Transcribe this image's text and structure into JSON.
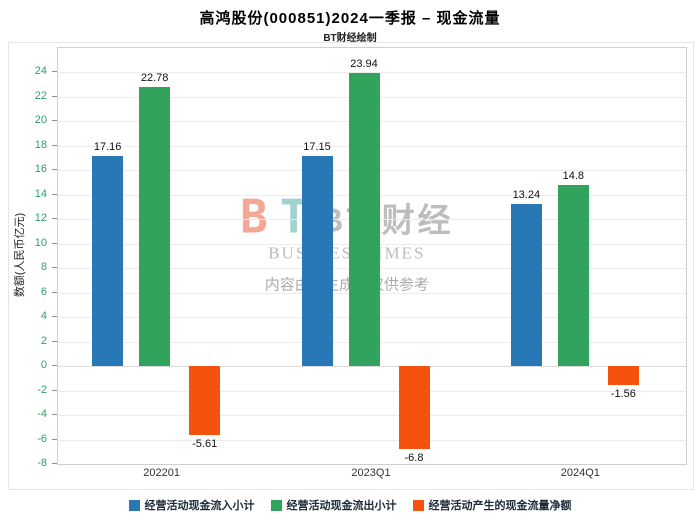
{
  "header": {
    "title": "高鸿股份(000851)2024一季报 – 现金流量",
    "subtitle": "BT财经绘制"
  },
  "watermark": {
    "logo_b": "B",
    "logo_t": "T",
    "brand": "BT 财经",
    "brand_sub": "BUSINESSTIMES",
    "disclaimer": "内容由AI生成，仅供参考"
  },
  "chart_data": {
    "type": "bar",
    "categories": [
      "202201",
      "2023Q1",
      "2024Q1"
    ],
    "series": [
      {
        "name": "经营活动现金流入小计",
        "color": "#2878b5",
        "values": [
          17.16,
          17.15,
          13.24
        ]
      },
      {
        "name": "经营活动现金流出小计",
        "color": "#31a35c",
        "values": [
          22.78,
          23.94,
          14.8
        ]
      },
      {
        "name": "经营活动产生的现金流量净额",
        "color": "#f4520d",
        "values": [
          -5.61,
          -6.8,
          -1.56
        ]
      }
    ],
    "ylabel": "数额(人民币亿元)",
    "ylim": [
      -8,
      24
    ],
    "ytick_step": 2,
    "axis_tick_color": "#2da06a",
    "grid": true,
    "legend_position": "bottom"
  }
}
